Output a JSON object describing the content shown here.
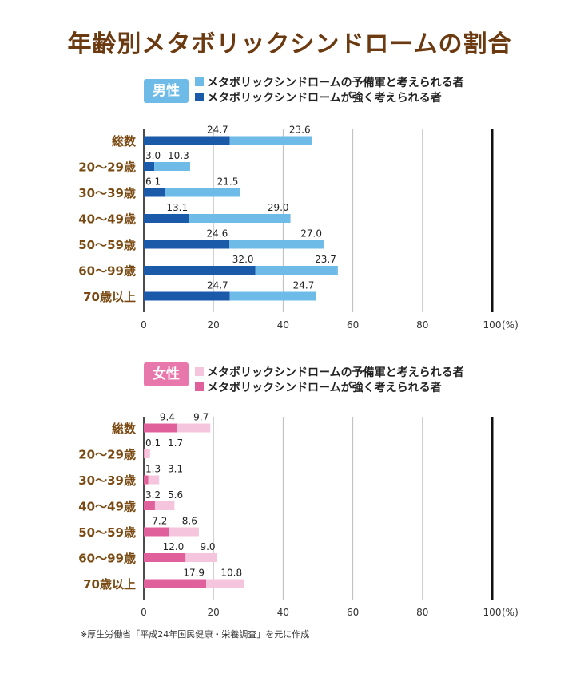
{
  "title": "年齢別メタボリックシンドロームの割合",
  "footnote": "※厚生労働省「平成24年国民健康・栄養調査」を元に作成",
  "chart_data": [
    {
      "type": "bar",
      "orientation": "horizontal",
      "stacked": true,
      "group": "男性",
      "categories": [
        "総数",
        "20〜29歳",
        "30〜39歳",
        "40〜49歳",
        "50〜59歳",
        "60〜99歳",
        "70歳以上"
      ],
      "series": [
        {
          "name": "メタボリックシンドロームが強く考えられる者",
          "color": "#1a5aa8",
          "values": [
            24.7,
            3.0,
            6.1,
            13.1,
            24.6,
            32.0,
            24.7
          ]
        },
        {
          "name": "メタボリックシンドロームの予備軍と考えられる者",
          "color": "#6fbbe8",
          "values": [
            23.6,
            10.3,
            21.5,
            29.0,
            27.0,
            23.7,
            24.7
          ]
        }
      ],
      "xlim": [
        0,
        100
      ],
      "xticks": [
        "0",
        "20",
        "40",
        "60",
        "80",
        "100"
      ],
      "x_unit": "(%)",
      "badge_color": "#6fbbe8",
      "label_color": "#7a4a12",
      "grid": true
    },
    {
      "type": "bar",
      "orientation": "horizontal",
      "stacked": true,
      "group": "女性",
      "categories": [
        "総数",
        "20〜29歳",
        "30〜39歳",
        "40〜49歳",
        "50〜59歳",
        "60〜99歳",
        "70歳以上"
      ],
      "series": [
        {
          "name": "メタボリックシンドロームが強く考えられる者",
          "color": "#e0609c",
          "values": [
            9.4,
            0.1,
            1.3,
            3.2,
            7.2,
            12.0,
            17.9
          ]
        },
        {
          "name": "メタボリックシンドロームの予備軍と考えられる者",
          "color": "#f5c4dd",
          "values": [
            9.7,
            1.7,
            3.1,
            5.6,
            8.6,
            9.0,
            10.8
          ]
        }
      ],
      "xlim": [
        0,
        100
      ],
      "xticks": [
        "0",
        "20",
        "40",
        "60",
        "80",
        "100"
      ],
      "x_unit": "(%)",
      "badge_color": "#e877ac",
      "label_color": "#7a4a12",
      "grid": true
    }
  ]
}
